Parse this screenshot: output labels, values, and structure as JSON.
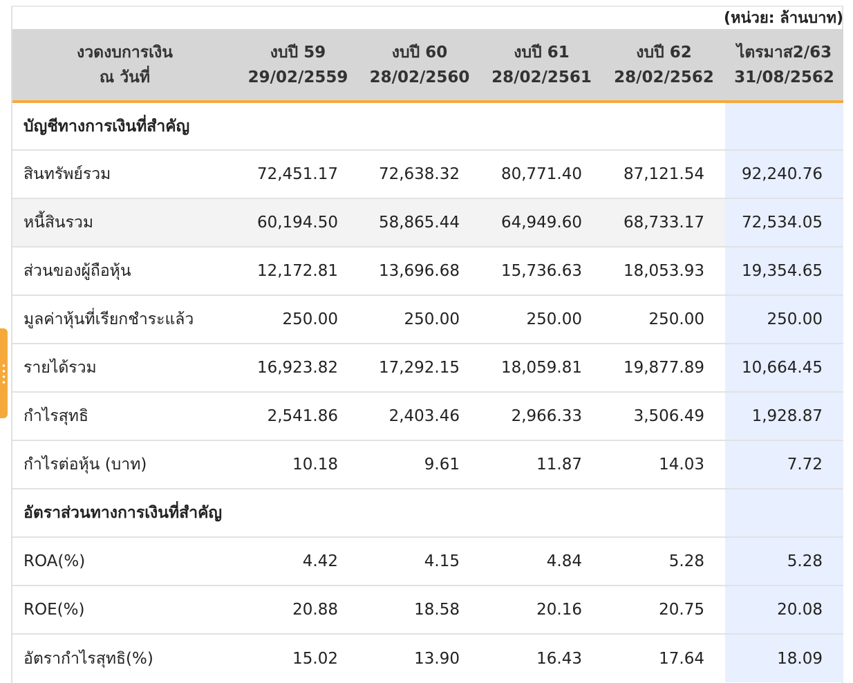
{
  "unit_label": "(หน่วย: ล้านบาท)",
  "header": {
    "period_line1": "งวดงบการเงิน",
    "period_line2": "ณ วันที่",
    "columns": [
      {
        "line1": "งบปี 59",
        "line2": "29/02/2559"
      },
      {
        "line1": "งบปี 60",
        "line2": "28/02/2560"
      },
      {
        "line1": "งบปี 61",
        "line2": "28/02/2561"
      },
      {
        "line1": "งบปี 62",
        "line2": "28/02/2562"
      },
      {
        "line1": "ไตรมาส2/63",
        "line2": "31/08/2562"
      }
    ]
  },
  "sections": {
    "accounts_title": "บัญชีทางการเงินที่สำคัญ",
    "ratios_title": "อัตราส่วนทางการเงินที่สำคัญ"
  },
  "rows": {
    "total_assets": {
      "label": "สินทรัพย์รวม",
      "values": [
        "72,451.17",
        "72,638.32",
        "80,771.40",
        "87,121.54",
        "92,240.76"
      ]
    },
    "total_liabilities": {
      "label": "หนี้สินรวม",
      "values": [
        "60,194.50",
        "58,865.44",
        "64,949.60",
        "68,733.17",
        "72,534.05"
      ]
    },
    "equity": {
      "label": "ส่วนของผู้ถือหุ้น",
      "values": [
        "12,172.81",
        "13,696.68",
        "15,736.63",
        "18,053.93",
        "19,354.65"
      ]
    },
    "paid_up": {
      "label": "มูลค่าหุ้นที่เรียกชำระแล้ว",
      "values": [
        "250.00",
        "250.00",
        "250.00",
        "250.00",
        "250.00"
      ]
    },
    "revenue": {
      "label": "รายได้รวม",
      "values": [
        "16,923.82",
        "17,292.15",
        "18,059.81",
        "19,877.89",
        "10,664.45"
      ]
    },
    "net_profit": {
      "label": "กำไรสุทธิ",
      "values": [
        "2,541.86",
        "2,403.46",
        "2,966.33",
        "3,506.49",
        "1,928.87"
      ]
    },
    "eps": {
      "label": "กำไรต่อหุ้น (บาท)",
      "values": [
        "10.18",
        "9.61",
        "11.87",
        "14.03",
        "7.72"
      ]
    },
    "roa": {
      "label": "ROA(%)",
      "values": [
        "4.42",
        "4.15",
        "4.84",
        "5.28",
        "5.28"
      ]
    },
    "roe": {
      "label": "ROE(%)",
      "values": [
        "20.88",
        "18.58",
        "20.16",
        "20.75",
        "20.08"
      ]
    },
    "net_margin": {
      "label": "อัตรากำไรสุทธิ(%)",
      "values": [
        "15.02",
        "13.90",
        "16.43",
        "17.64",
        "18.09"
      ]
    }
  },
  "colors": {
    "accent": "#f5a93a",
    "header_bg": "#d6d6d6",
    "highlight_column": "#e8efff",
    "alt_row": "#f3f3f3"
  }
}
